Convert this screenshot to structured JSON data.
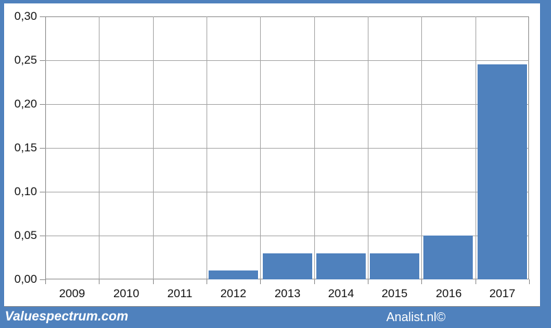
{
  "chart_data": {
    "type": "bar",
    "title": "",
    "xlabel": "",
    "ylabel": "",
    "categories": [
      "2009",
      "2010",
      "2011",
      "2012",
      "2013",
      "2014",
      "2015",
      "2016",
      "2017"
    ],
    "values": [
      0,
      0,
      0,
      0.01,
      0.03,
      0.03,
      0.03,
      0.05,
      0.245
    ],
    "ylim": [
      0,
      0.3
    ],
    "ytick_step": 0.05,
    "ytick_labels": [
      "0,00",
      "0,05",
      "0,10",
      "0,15",
      "0,20",
      "0,25",
      "0,30"
    ],
    "grid": true,
    "legend": "none",
    "decimal_separator": ","
  },
  "footer": {
    "left_text": "Valuespectrum.com",
    "right_text": "Analist.nl©"
  },
  "colors": {
    "frame_blue": "#4f81bd",
    "bar_blue": "#4f81bd",
    "gridline": "#a6a6a6",
    "axis_gray": "#8c8c8c",
    "label_text": "#111111",
    "footer_text": "#ffffff",
    "plot_background": "#ffffff"
  }
}
